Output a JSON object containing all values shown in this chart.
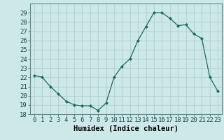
{
  "x": [
    0,
    1,
    2,
    3,
    4,
    5,
    6,
    7,
    8,
    9,
    10,
    11,
    12,
    13,
    14,
    15,
    16,
    17,
    18,
    19,
    20,
    21,
    22,
    23
  ],
  "y": [
    22.2,
    22.0,
    21.0,
    20.2,
    19.4,
    19.0,
    18.9,
    18.9,
    18.4,
    19.2,
    22.0,
    23.2,
    24.0,
    26.0,
    27.5,
    29.0,
    29.0,
    28.4,
    27.6,
    27.7,
    26.7,
    26.2,
    22.0,
    20.5
  ],
  "xlabel": "Humidex (Indice chaleur)",
  "ylim": [
    18,
    30
  ],
  "xlim": [
    -0.5,
    23.5
  ],
  "yticks": [
    18,
    19,
    20,
    21,
    22,
    23,
    24,
    25,
    26,
    27,
    28,
    29
  ],
  "xticks": [
    0,
    1,
    2,
    3,
    4,
    5,
    6,
    7,
    8,
    9,
    10,
    11,
    12,
    13,
    14,
    15,
    16,
    17,
    18,
    19,
    20,
    21,
    22,
    23
  ],
  "line_color": "#1a6b5a",
  "marker": "D",
  "marker_size": 2.0,
  "bg_color": "#cce8e8",
  "grid_color": "#b0cccc",
  "xlabel_fontsize": 7.5,
  "tick_fontsize": 6.5
}
